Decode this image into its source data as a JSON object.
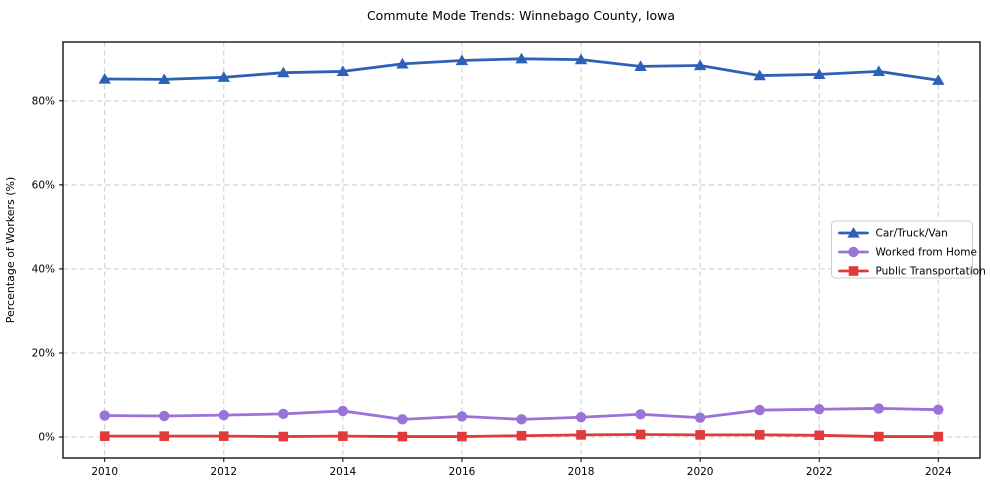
{
  "chart_data": {
    "type": "line",
    "title": "Commute Mode Trends: Winnebago County, Iowa",
    "xlabel": "",
    "ylabel": "Percentage of Workers (%)",
    "x": [
      2010,
      2011,
      2012,
      2013,
      2014,
      2015,
      2016,
      2017,
      2018,
      2019,
      2020,
      2021,
      2022,
      2023,
      2024
    ],
    "x_ticks": [
      2010,
      2012,
      2014,
      2016,
      2018,
      2020,
      2022,
      2024
    ],
    "x_tick_labels": [
      "2010",
      "2012",
      "2014",
      "2016",
      "2018",
      "2020",
      "2022",
      "2024"
    ],
    "y_ticks": [
      0,
      20,
      40,
      60,
      80
    ],
    "y_tick_labels": [
      "0%",
      "20%",
      "40%",
      "60%",
      "80%"
    ],
    "xlim": [
      2009.3,
      2024.7
    ],
    "ylim": [
      -5,
      94
    ],
    "grid": true,
    "grid_style": "dashed",
    "legend_position": "center-right",
    "series": [
      {
        "name": "Car/Truck/Van",
        "color": "#2d61b8",
        "marker": "triangle",
        "values": [
          85.2,
          85.1,
          85.6,
          86.7,
          87.0,
          88.8,
          89.6,
          90.0,
          89.8,
          88.2,
          88.4,
          86.0,
          86.3,
          87.0,
          84.9
        ]
      },
      {
        "name": "Worked from Home",
        "color": "#9a72d8",
        "marker": "circle",
        "values": [
          5.1,
          5.0,
          5.2,
          5.5,
          6.2,
          4.2,
          4.9,
          4.2,
          4.7,
          5.4,
          4.6,
          6.4,
          6.6,
          6.8,
          6.5
        ]
      },
      {
        "name": "Public Transportation",
        "color": "#e03a3a",
        "marker": "square",
        "values": [
          0.2,
          0.2,
          0.2,
          0.1,
          0.2,
          0.1,
          0.1,
          0.3,
          0.5,
          0.6,
          0.5,
          0.5,
          0.4,
          0.1,
          0.1
        ]
      }
    ],
    "legend": {
      "items": [
        "Car/Truck/Van",
        "Worked from Home",
        "Public Transportation"
      ]
    },
    "colors": {
      "background": "#ffffff",
      "grid": "#cccccc",
      "spine": "#000000",
      "text": "#000000",
      "legend_border": "#cccccc"
    }
  }
}
